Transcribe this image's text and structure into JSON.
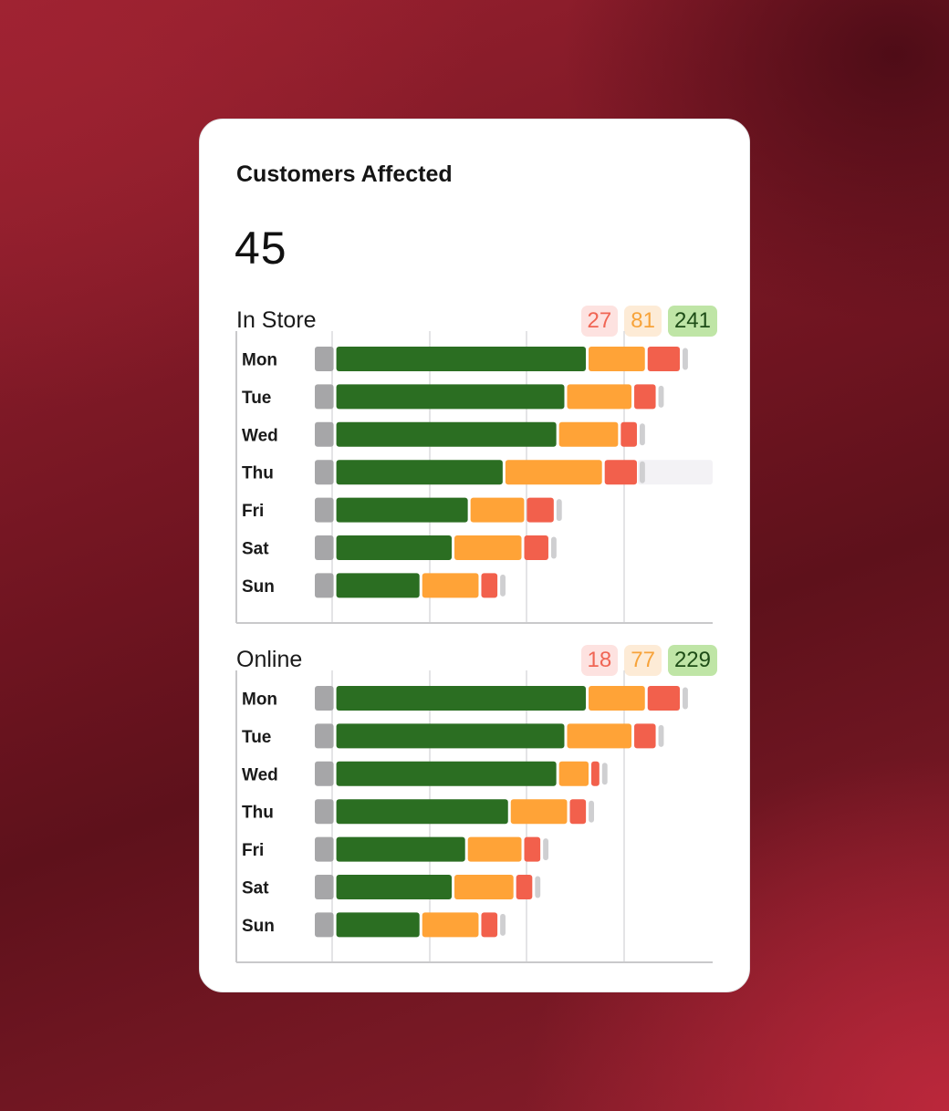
{
  "card": {
    "title": "Customers Affected",
    "value": "45"
  },
  "colors": {
    "green": "#2b6e22",
    "orange": "#ffa337",
    "red": "#f2604c",
    "gray": "#a6a6a8",
    "light_gray": "#cfcfd1"
  },
  "chart_data": [
    {
      "type": "bar",
      "title": "In Store",
      "badges": [
        "27",
        "81",
        "241"
      ],
      "categories": [
        "Mon",
        "Tue",
        "Wed",
        "Thu",
        "Fri",
        "Sat",
        "Sun"
      ],
      "series": [
        {
          "values": [
            7,
            7,
            7,
            7,
            7,
            7,
            7
          ]
        },
        {
          "values": [
            93,
            85,
            82,
            62,
            49,
            43,
            31
          ]
        },
        {
          "values": [
            21,
            24,
            22,
            36,
            20,
            25,
            21
          ]
        },
        {
          "values": [
            12,
            8,
            6,
            12,
            10,
            9,
            6
          ]
        },
        {
          "values": [
            2,
            2,
            2,
            2,
            2,
            2,
            2
          ]
        }
      ],
      "highlight_category": "Thu",
      "grid": true
    },
    {
      "type": "bar",
      "title": "Online",
      "badges": [
        "18",
        "77",
        "229"
      ],
      "categories": [
        "Mon",
        "Tue",
        "Wed",
        "Thu",
        "Fri",
        "Sat",
        "Sun"
      ],
      "series": [
        {
          "values": [
            7,
            7,
            7,
            7,
            7,
            7,
            7
          ]
        },
        {
          "values": [
            93,
            85,
            82,
            64,
            48,
            43,
            31
          ]
        },
        {
          "values": [
            21,
            24,
            11,
            21,
            20,
            22,
            21
          ]
        },
        {
          "values": [
            12,
            8,
            3,
            6,
            6,
            6,
            6
          ]
        },
        {
          "values": [
            2,
            2,
            2,
            2,
            2,
            2,
            2
          ]
        }
      ],
      "grid": true
    }
  ]
}
